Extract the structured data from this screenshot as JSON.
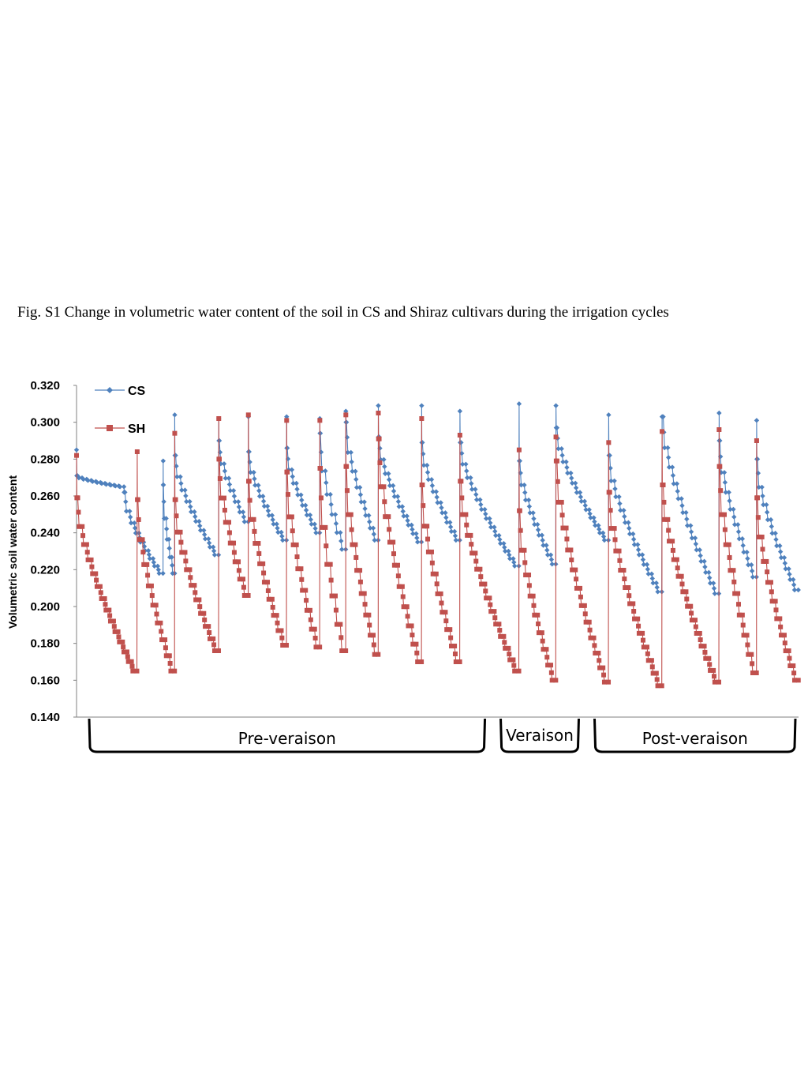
{
  "caption": "Fig. S1 Change in volumetric water content of the soil in CS and Shiraz cultivars during the irrigation cycles",
  "colors": {
    "cs": "#4f81bd",
    "sh": "#c0504d",
    "axis": "#808080"
  },
  "chart_data": {
    "type": "line",
    "ylabel": "Volumetric soil water content",
    "ylim": [
      0.14,
      0.32
    ],
    "yticks": [
      "0.140",
      "0.160",
      "0.180",
      "0.200",
      "0.220",
      "0.240",
      "0.260",
      "0.280",
      "0.300",
      "0.320"
    ],
    "legend_position": "top-left",
    "phases": [
      "Pre-veraison",
      "Veraison",
      "Post-veraison"
    ],
    "phase_boundaries": [
      0,
      57,
      70,
      100
    ],
    "x_max": 100,
    "series": [
      {
        "name": "CS",
        "marker": "diamond",
        "cycles": [
          {
            "t": 0.0,
            "peak": 0.285,
            "after": 0.271,
            "end": 0.265
          },
          {
            "t": 6.6,
            "peak": 0.262,
            "after": 0.262,
            "end": 0.218
          },
          {
            "t": 12.0,
            "peak": 0.279,
            "after": 0.266,
            "end": 0.218
          },
          {
            "t": 13.6,
            "peak": 0.304,
            "after": 0.282,
            "end": 0.228
          },
          {
            "t": 19.7,
            "peak": 0.302,
            "after": 0.29,
            "end": 0.246
          },
          {
            "t": 23.8,
            "peak": 0.303,
            "after": 0.284,
            "end": 0.236
          },
          {
            "t": 29.1,
            "peak": 0.303,
            "after": 0.286,
            "end": 0.24
          },
          {
            "t": 33.7,
            "peak": 0.302,
            "after": 0.294,
            "end": 0.231
          },
          {
            "t": 37.3,
            "peak": 0.306,
            "after": 0.3,
            "end": 0.236
          },
          {
            "t": 41.8,
            "peak": 0.309,
            "after": 0.292,
            "end": 0.235
          },
          {
            "t": 47.8,
            "peak": 0.309,
            "after": 0.289,
            "end": 0.236
          },
          {
            "t": 53.1,
            "peak": 0.306,
            "after": 0.289,
            "end": 0.222
          },
          {
            "t": 61.3,
            "peak": 0.31,
            "after": 0.279,
            "end": 0.223
          },
          {
            "t": 66.4,
            "peak": 0.309,
            "after": 0.297,
            "end": 0.236
          },
          {
            "t": 73.7,
            "peak": 0.304,
            "after": 0.282,
            "end": 0.208
          },
          {
            "t": 81.1,
            "peak": 0.303,
            "after": 0.303,
            "end": 0.207
          },
          {
            "t": 89.0,
            "peak": 0.305,
            "after": 0.29,
            "end": 0.216
          },
          {
            "t": 94.2,
            "peak": 0.301,
            "after": 0.28,
            "end": 0.209
          }
        ]
      },
      {
        "name": "SH",
        "marker": "square",
        "cycles": [
          {
            "t": 0.0,
            "peak": 0.282,
            "after": 0.259,
            "end": 0.165
          },
          {
            "t": 8.4,
            "peak": 0.284,
            "after": 0.258,
            "end": 0.165
          },
          {
            "t": 13.6,
            "peak": 0.294,
            "after": 0.258,
            "end": 0.176
          },
          {
            "t": 19.7,
            "peak": 0.302,
            "after": 0.28,
            "end": 0.206
          },
          {
            "t": 23.8,
            "peak": 0.304,
            "after": 0.268,
            "end": 0.179
          },
          {
            "t": 29.1,
            "peak": 0.301,
            "after": 0.273,
            "end": 0.178
          },
          {
            "t": 33.7,
            "peak": 0.301,
            "after": 0.275,
            "end": 0.176
          },
          {
            "t": 37.3,
            "peak": 0.304,
            "after": 0.276,
            "end": 0.174
          },
          {
            "t": 41.8,
            "peak": 0.305,
            "after": 0.291,
            "end": 0.17
          },
          {
            "t": 47.8,
            "peak": 0.302,
            "after": 0.266,
            "end": 0.17
          },
          {
            "t": 53.1,
            "peak": 0.293,
            "after": 0.268,
            "end": 0.165
          },
          {
            "t": 61.3,
            "peak": 0.285,
            "after": 0.252,
            "end": 0.16
          },
          {
            "t": 66.4,
            "peak": 0.292,
            "after": 0.279,
            "end": 0.159
          },
          {
            "t": 73.7,
            "peak": 0.289,
            "after": 0.262,
            "end": 0.157
          },
          {
            "t": 81.1,
            "peak": 0.295,
            "after": 0.266,
            "end": 0.159
          },
          {
            "t": 89.0,
            "peak": 0.296,
            "after": 0.276,
            "end": 0.164
          },
          {
            "t": 94.2,
            "peak": 0.29,
            "after": 0.259,
            "end": 0.16
          }
        ]
      }
    ]
  }
}
